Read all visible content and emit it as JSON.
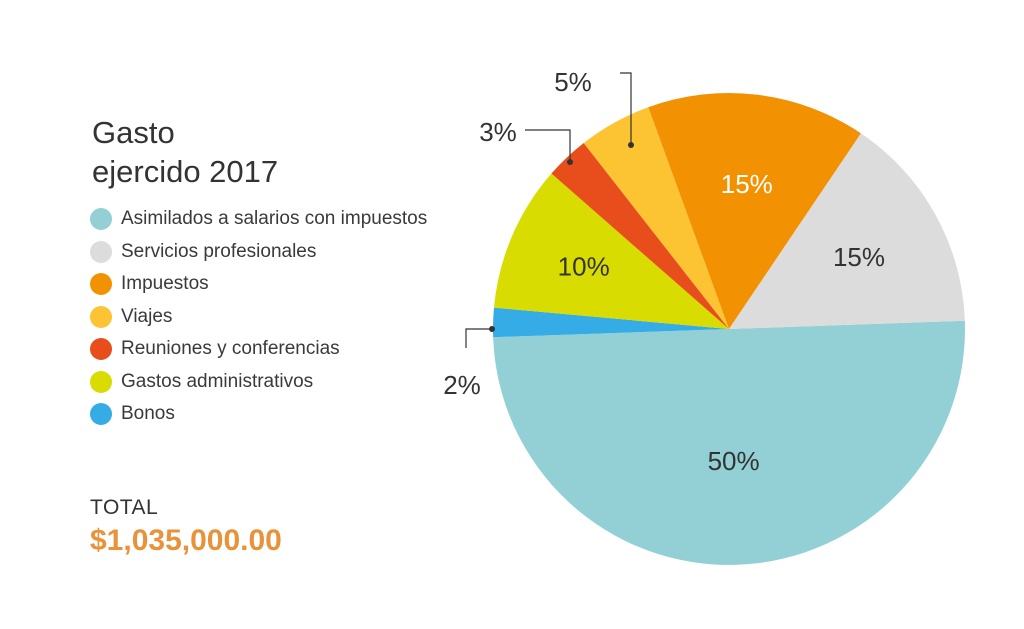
{
  "title_line1": "Gasto",
  "title_line2": "ejercido 2017",
  "total": {
    "label": "TOTAL",
    "value": "$1,035,000.00"
  },
  "colors": {
    "total_value": "#e8923a"
  },
  "chart_data": {
    "type": "pie",
    "title": "Gasto ejercido 2017",
    "legend_position": "left",
    "slices": [
      {
        "label": "Asimilados a salarios con impuestos",
        "value": 50,
        "display": "50%",
        "color": "#93d0d5"
      },
      {
        "label": "Servicios profesionales",
        "value": 15,
        "display": "15%",
        "color": "#dcdcdc"
      },
      {
        "label": "Impuestos",
        "value": 15,
        "display": "15%",
        "color": "#f29202"
      },
      {
        "label": "Viajes",
        "value": 5,
        "display": "5%",
        "color": "#fcc433"
      },
      {
        "label": "Reuniones y conferencias",
        "value": 3,
        "display": "3%",
        "color": "#e84e1b"
      },
      {
        "label": "Gastos administrativos",
        "value": 10,
        "display": "10%",
        "color": "#d9dc00"
      },
      {
        "label": "Bonos",
        "value": 2,
        "display": "2%",
        "color": "#35ace5"
      }
    ]
  }
}
